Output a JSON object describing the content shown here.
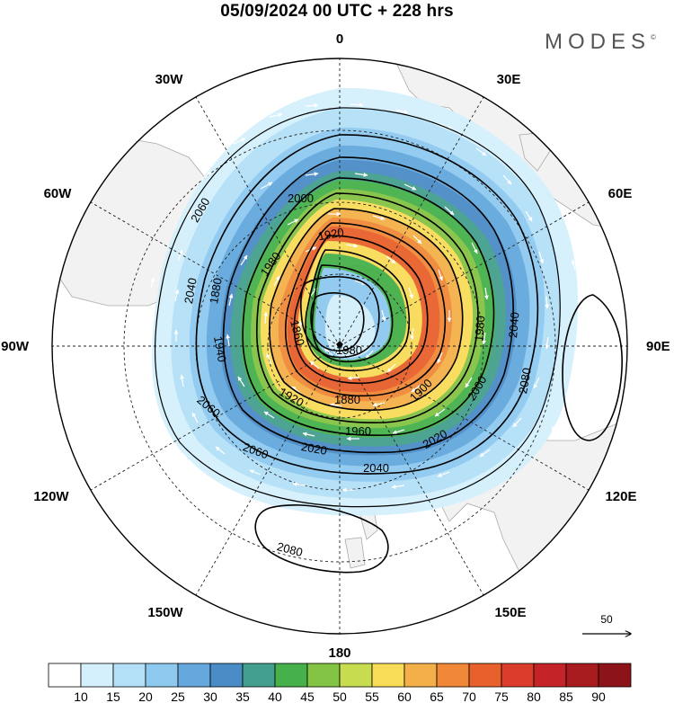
{
  "title": "05/09/2024  00 UTC  + 228 hrs",
  "brand": "MODES",
  "brand_mark": "©",
  "map": {
    "projection": "polar-stereographic-south",
    "pole": "south",
    "longitude_labels": {
      "top": "0",
      "top_right": "30E",
      "right_upper": "60E",
      "right": "90E",
      "right_lower": "120E",
      "bottom_right": "150E",
      "bottom": "180",
      "bottom_left": "150W",
      "left_lower": "120W",
      "left": "90W",
      "left_upper": "60W",
      "top_left": "30W"
    },
    "contour_labels": [
      "2060",
      "2040",
      "2000",
      "1920",
      "1880",
      "1980",
      "1860",
      "1920",
      "1880",
      "1900",
      "2000",
      "1980",
      "2040",
      "2080",
      "2060",
      "2060",
      "2020",
      "1960",
      "2020",
      "2040",
      "1940",
      "2080",
      "1980"
    ],
    "reference_vector_label": "50",
    "colors": {
      "land": "#f2f2f2",
      "land_border": "#aaaaaa",
      "contour_line": "#000000",
      "wind_arrow": "#ffffff"
    }
  },
  "colorbar": {
    "levels": [
      "10",
      "15",
      "20",
      "25",
      "30",
      "35",
      "40",
      "45",
      "50",
      "55",
      "60",
      "65",
      "70",
      "75",
      "80",
      "85",
      "90"
    ],
    "colors": [
      "#ffffff",
      "#d4f0fc",
      "#b4e0f7",
      "#8ecaf0",
      "#64a8de",
      "#4a8cc6",
      "#44a08e",
      "#46b04a",
      "#84c444",
      "#c8dc50",
      "#f8dc58",
      "#f4b048",
      "#f08838",
      "#e8602c",
      "#dc3c2c",
      "#c42428",
      "#a81c20",
      "#8c1418"
    ]
  }
}
